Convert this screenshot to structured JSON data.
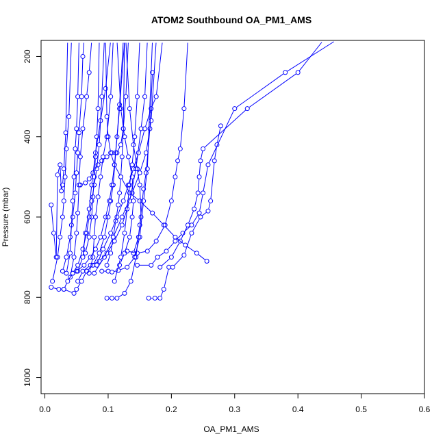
{
  "chart_data": {
    "type": "line",
    "title": "ATOM2 Southbound OA_PM1_AMS",
    "xlabel": "OA_PM1_AMS",
    "ylabel": "Pressure (mbar)",
    "xlim": [
      -0.006,
      0.6
    ],
    "ylim": [
      1040,
      160
    ],
    "y_reversed": true,
    "x_ticks": [
      "0.0",
      "0.1",
      "0.2",
      "0.3",
      "0.4",
      "0.5",
      "0.6"
    ],
    "y_ticks": [
      "200",
      "400",
      "600",
      "800",
      "1000"
    ],
    "series_color": "#0000ff",
    "marker": "open-circle",
    "series": [
      {
        "points": [
          [
            0.01,
            570
          ],
          [
            0.014,
            640
          ],
          [
            0.018,
            700
          ],
          [
            0.02,
            495
          ],
          [
            0.024,
            470
          ],
          [
            0.026,
            535
          ],
          [
            0.028,
            520
          ],
          [
            0.03,
            480
          ],
          [
            0.033,
            390
          ],
          [
            0.036,
            160
          ]
        ]
      },
      {
        "points": [
          [
            0.01,
            775
          ],
          [
            0.022,
            780
          ],
          [
            0.03,
            780
          ],
          [
            0.036,
            760
          ],
          [
            0.044,
            740
          ],
          [
            0.052,
            735
          ],
          [
            0.06,
            700
          ],
          [
            0.064,
            640
          ],
          [
            0.07,
            580
          ],
          [
            0.074,
            520
          ],
          [
            0.08,
            440
          ],
          [
            0.088,
            360
          ],
          [
            0.096,
            280
          ],
          [
            0.104,
            160
          ]
        ]
      },
      {
        "points": [
          [
            0.028,
            735
          ],
          [
            0.034,
            700
          ],
          [
            0.04,
            650
          ],
          [
            0.044,
            600
          ],
          [
            0.048,
            540
          ],
          [
            0.05,
            490
          ],
          [
            0.052,
            440
          ],
          [
            0.054,
            390
          ],
          [
            0.058,
            300
          ],
          [
            0.06,
            200
          ],
          [
            0.062,
            160
          ]
        ]
      },
      {
        "points": [
          [
            0.03,
            780
          ],
          [
            0.046,
            790
          ],
          [
            0.05,
            780
          ],
          [
            0.058,
            760
          ],
          [
            0.066,
            735
          ],
          [
            0.076,
            720
          ],
          [
            0.086,
            690
          ],
          [
            0.094,
            650
          ],
          [
            0.1,
            600
          ],
          [
            0.104,
            560
          ],
          [
            0.108,
            520
          ],
          [
            0.112,
            440
          ],
          [
            0.118,
            330
          ],
          [
            0.126,
            160
          ]
        ]
      },
      {
        "points": [
          [
            0.04,
            750
          ],
          [
            0.046,
            700
          ],
          [
            0.05,
            640
          ],
          [
            0.052,
            590
          ],
          [
            0.054,
            520
          ],
          [
            0.056,
            450
          ],
          [
            0.06,
            380
          ],
          [
            0.066,
            300
          ],
          [
            0.07,
            240
          ],
          [
            0.074,
            160
          ]
        ]
      },
      {
        "points": [
          [
            0.05,
            735
          ],
          [
            0.062,
            720
          ],
          [
            0.072,
            700
          ],
          [
            0.08,
            680
          ],
          [
            0.088,
            650
          ],
          [
            0.096,
            600
          ],
          [
            0.102,
            560
          ],
          [
            0.106,
            520
          ],
          [
            0.11,
            470
          ],
          [
            0.114,
            400
          ],
          [
            0.118,
            320
          ],
          [
            0.124,
            160
          ]
        ]
      },
      {
        "points": [
          [
            0.052,
            760
          ],
          [
            0.06,
            735
          ],
          [
            0.072,
            720
          ],
          [
            0.086,
            710
          ],
          [
            0.098,
            690
          ],
          [
            0.11,
            660
          ],
          [
            0.122,
            620
          ],
          [
            0.134,
            560
          ],
          [
            0.144,
            480
          ],
          [
            0.152,
            380
          ],
          [
            0.158,
            300
          ],
          [
            0.162,
            160
          ]
        ]
      },
      {
        "points": [
          [
            0.09,
            735
          ],
          [
            0.1,
            735
          ],
          [
            0.106,
            737
          ],
          [
            0.116,
            733
          ],
          [
            0.13,
            725
          ],
          [
            0.142,
            700
          ],
          [
            0.15,
            650
          ],
          [
            0.156,
            560
          ],
          [
            0.162,
            480
          ],
          [
            0.17,
            160
          ]
        ]
      },
      {
        "points": [
          [
            0.098,
            802
          ],
          [
            0.106,
            802
          ],
          [
            0.114,
            802
          ],
          [
            0.126,
            790
          ],
          [
            0.136,
            760
          ],
          [
            0.144,
            700
          ],
          [
            0.15,
            620
          ],
          [
            0.156,
            530
          ],
          [
            0.16,
            490
          ],
          [
            0.166,
            380
          ],
          [
            0.17,
            240
          ]
        ]
      },
      {
        "points": [
          [
            0.164,
            802
          ],
          [
            0.174,
            802
          ],
          [
            0.182,
            802
          ],
          [
            0.188,
            780
          ],
          [
            0.196,
            725
          ],
          [
            0.202,
            725
          ],
          [
            0.22,
            695
          ],
          [
            0.232,
            640
          ],
          [
            0.246,
            600
          ],
          [
            0.258,
            585
          ],
          [
            0.262,
            560
          ],
          [
            0.268,
            460
          ],
          [
            0.272,
            420
          ],
          [
            0.278,
            373
          ]
        ]
      },
      {
        "points": [
          [
            0.13,
            685
          ],
          [
            0.146,
            690
          ],
          [
            0.162,
            685
          ],
          [
            0.176,
            660
          ],
          [
            0.19,
            620
          ],
          [
            0.2,
            560
          ],
          [
            0.206,
            500
          ],
          [
            0.21,
            460
          ],
          [
            0.214,
            430
          ],
          [
            0.22,
            330
          ],
          [
            0.226,
            160
          ]
        ]
      },
      {
        "points": [
          [
            0.078,
            740
          ],
          [
            0.094,
            700
          ],
          [
            0.108,
            650
          ],
          [
            0.122,
            600
          ],
          [
            0.138,
            540
          ],
          [
            0.15,
            490
          ],
          [
            0.16,
            440
          ],
          [
            0.168,
            360
          ],
          [
            0.176,
            160
          ]
        ]
      },
      {
        "points": [
          [
            0.11,
            760
          ],
          [
            0.12,
            700
          ],
          [
            0.126,
            640
          ],
          [
            0.13,
            580
          ],
          [
            0.134,
            520
          ],
          [
            0.138,
            470
          ],
          [
            0.142,
            400
          ],
          [
            0.146,
            300
          ],
          [
            0.15,
            160
          ]
        ]
      },
      {
        "points": [
          [
            0.082,
            720
          ],
          [
            0.092,
            680
          ],
          [
            0.104,
            640
          ],
          [
            0.114,
            600
          ],
          [
            0.124,
            560
          ],
          [
            0.132,
            520
          ],
          [
            0.14,
            480
          ],
          [
            0.148,
            440
          ],
          [
            0.158,
            380
          ],
          [
            0.168,
            330
          ],
          [
            0.176,
            300
          ],
          [
            0.186,
            160
          ]
        ]
      },
      {
        "points": [
          [
            0.044,
            740
          ],
          [
            0.052,
            720
          ],
          [
            0.06,
            680
          ],
          [
            0.066,
            640
          ],
          [
            0.07,
            600
          ],
          [
            0.074,
            560
          ],
          [
            0.078,
            520
          ],
          [
            0.082,
            480
          ],
          [
            0.086,
            420
          ],
          [
            0.09,
            300
          ],
          [
            0.094,
            160
          ]
        ]
      },
      {
        "points": [
          [
            0.146,
            720
          ],
          [
            0.168,
            720
          ],
          [
            0.178,
            700
          ],
          [
            0.192,
            685
          ],
          [
            0.206,
            660
          ],
          [
            0.218,
            640
          ],
          [
            0.232,
            620
          ],
          [
            0.244,
            590
          ],
          [
            0.25,
            540
          ],
          [
            0.258,
            470
          ],
          [
            0.3,
            330
          ],
          [
            0.38,
            240
          ],
          [
            0.46,
            160
          ]
        ]
      },
      {
        "points": [
          [
            0.182,
            725
          ],
          [
            0.2,
            700
          ],
          [
            0.214,
            660
          ],
          [
            0.226,
            620
          ],
          [
            0.236,
            580
          ],
          [
            0.242,
            540
          ],
          [
            0.244,
            500
          ],
          [
            0.246,
            460
          ],
          [
            0.25,
            430
          ],
          [
            0.32,
            330
          ],
          [
            0.4,
            240
          ],
          [
            0.44,
            160
          ]
        ]
      },
      {
        "points": [
          [
            0.256,
            710
          ],
          [
            0.24,
            690
          ],
          [
            0.222,
            670
          ],
          [
            0.206,
            650
          ],
          [
            0.188,
            620
          ],
          [
            0.17,
            590
          ],
          [
            0.15,
            560
          ],
          [
            0.134,
            540
          ],
          [
            0.12,
            500
          ],
          [
            0.11,
            470
          ],
          [
            0.104,
            440
          ],
          [
            0.1,
            400
          ],
          [
            0.098,
            350
          ],
          [
            0.096,
            160
          ]
        ]
      },
      {
        "points": [
          [
            0.056,
            520
          ],
          [
            0.064,
            515
          ],
          [
            0.07,
            505
          ],
          [
            0.076,
            490
          ],
          [
            0.084,
            470
          ],
          [
            0.09,
            460
          ],
          [
            0.098,
            450
          ],
          [
            0.106,
            440
          ],
          [
            0.114,
            440
          ],
          [
            0.12,
            420
          ],
          [
            0.124,
            380
          ],
          [
            0.128,
            300
          ],
          [
            0.132,
            160
          ]
        ]
      },
      {
        "points": [
          [
            0.012,
            760
          ],
          [
            0.02,
            700
          ],
          [
            0.024,
            650
          ],
          [
            0.028,
            600
          ],
          [
            0.03,
            560
          ],
          [
            0.032,
            500
          ],
          [
            0.034,
            430
          ],
          [
            0.038,
            350
          ],
          [
            0.042,
            160
          ]
        ]
      },
      {
        "points": [
          [
            0.034,
            740
          ],
          [
            0.04,
            690
          ],
          [
            0.042,
            620
          ],
          [
            0.044,
            560
          ],
          [
            0.046,
            500
          ],
          [
            0.048,
            430
          ],
          [
            0.05,
            380
          ],
          [
            0.052,
            300
          ],
          [
            0.054,
            160
          ]
        ]
      },
      {
        "points": [
          [
            0.064,
            690
          ],
          [
            0.07,
            650
          ],
          [
            0.074,
            600
          ],
          [
            0.076,
            550
          ],
          [
            0.078,
            500
          ],
          [
            0.08,
            450
          ],
          [
            0.082,
            400
          ],
          [
            0.084,
            330
          ],
          [
            0.086,
            160
          ]
        ]
      },
      {
        "points": [
          [
            0.14,
            690
          ],
          [
            0.148,
            650
          ],
          [
            0.152,
            600
          ],
          [
            0.15,
            520
          ],
          [
            0.146,
            480
          ],
          [
            0.14,
            420
          ],
          [
            0.134,
            330
          ],
          [
            0.128,
            160
          ]
        ]
      },
      {
        "points": [
          [
            0.118,
            720
          ],
          [
            0.126,
            690
          ],
          [
            0.134,
            650
          ],
          [
            0.138,
            600
          ],
          [
            0.14,
            560
          ],
          [
            0.138,
            500
          ],
          [
            0.132,
            450
          ],
          [
            0.126,
            400
          ],
          [
            0.12,
            330
          ],
          [
            0.114,
            160
          ]
        ]
      },
      {
        "points": [
          [
            0.07,
            740
          ],
          [
            0.076,
            700
          ],
          [
            0.078,
            650
          ],
          [
            0.08,
            600
          ],
          [
            0.084,
            550
          ],
          [
            0.088,
            500
          ],
          [
            0.092,
            450
          ],
          [
            0.098,
            400
          ],
          [
            0.104,
            300
          ],
          [
            0.108,
            160
          ]
        ]
      },
      {
        "points": [
          [
            0.098,
            720
          ],
          [
            0.104,
            690
          ],
          [
            0.108,
            650
          ],
          [
            0.112,
            610
          ],
          [
            0.116,
            570
          ],
          [
            0.118,
            540
          ],
          [
            0.12,
            500
          ],
          [
            0.122,
            450
          ],
          [
            0.124,
            380
          ],
          [
            0.126,
            160
          ]
        ]
      }
    ]
  }
}
